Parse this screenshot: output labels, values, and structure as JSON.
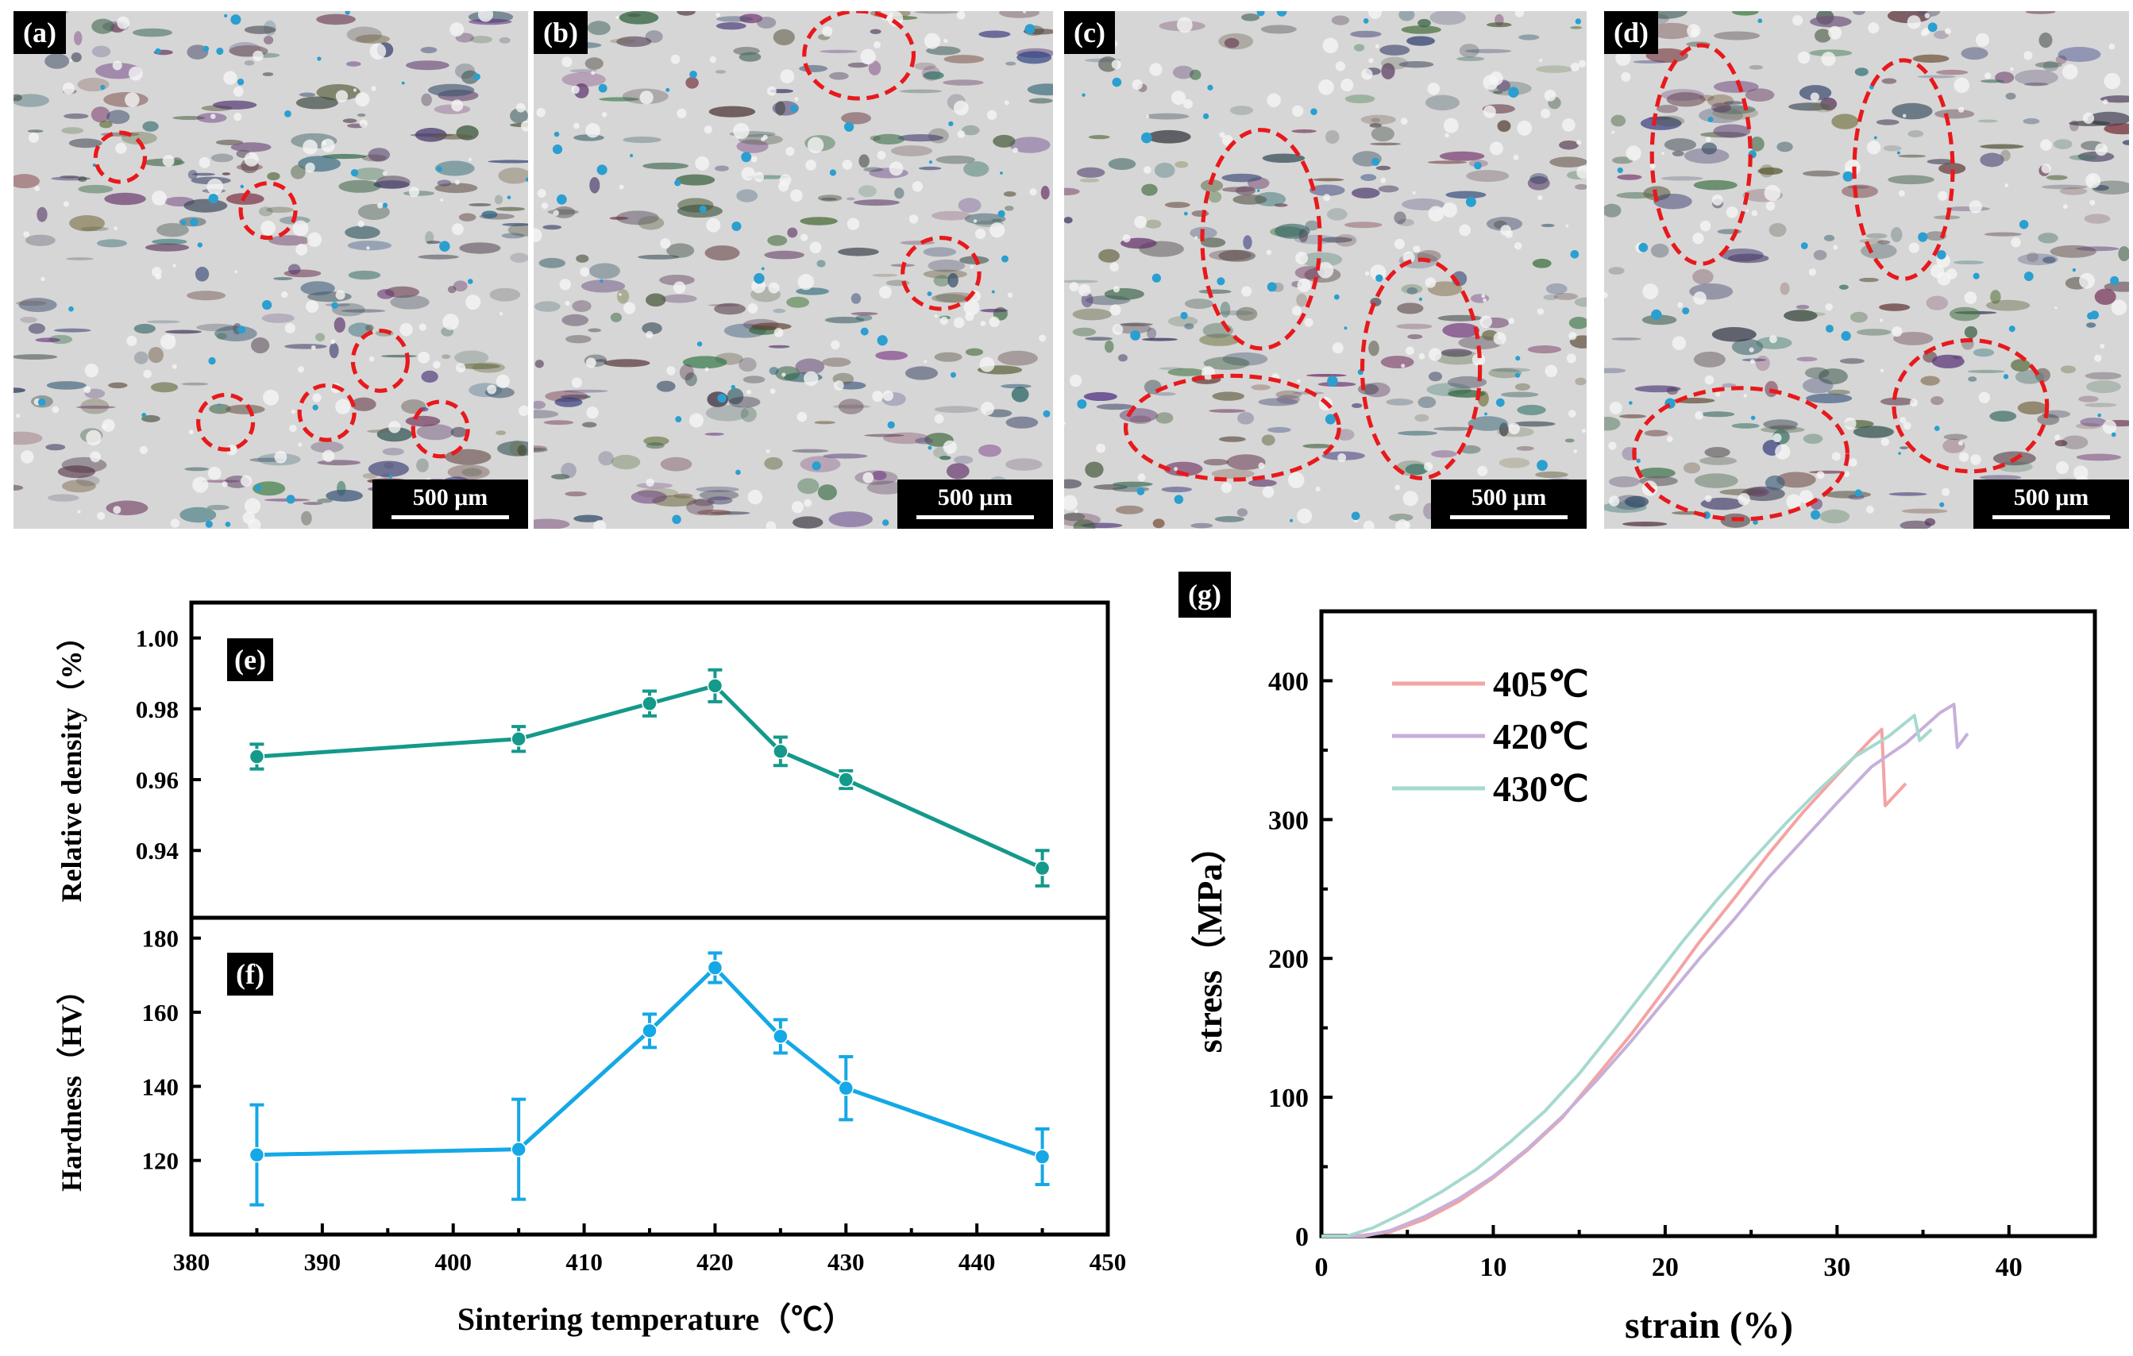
{
  "micrographs": [
    {
      "label": "(a)",
      "scale_bar": "500 μm"
    },
    {
      "label": "(b)",
      "scale_bar": "500 μm"
    },
    {
      "label": "(c)",
      "scale_bar": "500 μm"
    },
    {
      "label": "(d)",
      "scale_bar": "500 μm"
    }
  ],
  "colors": {
    "density": "#14998a",
    "hardness": "#14a8e6",
    "s405": "#f5a3a3",
    "s420": "#c6b0da",
    "s430": "#a6d9cf",
    "ellipse": "#e8191c"
  },
  "chart_data": [
    {
      "type": "line",
      "panel_label": "(e)",
      "title": "",
      "xlabel": "Sintering temperature（℃）",
      "ylabel": "Relative density（%）",
      "xlim": [
        380,
        450
      ],
      "ylim": [
        0.921,
        1.01
      ],
      "yticks": [
        "0.94",
        "0.96",
        "0.98",
        "1.00"
      ],
      "x": [
        385,
        405,
        415,
        420,
        425,
        430,
        445
      ],
      "values": [
        0.9665,
        0.9715,
        0.9815,
        0.9865,
        0.968,
        0.96,
        0.935
      ],
      "errors": [
        0.0035,
        0.0035,
        0.0035,
        0.0045,
        0.004,
        0.0025,
        0.005
      ]
    },
    {
      "type": "line",
      "panel_label": "(f)",
      "title": "",
      "xlabel": "Sintering temperature（℃）",
      "ylabel": "Hardness（HV）",
      "xlim": [
        380,
        450
      ],
      "ylim": [
        100,
        185.5
      ],
      "yticks": [
        "120",
        "140",
        "160",
        "180"
      ],
      "xticks": [
        "380",
        "390",
        "400",
        "410",
        "420",
        "430",
        "440",
        "450"
      ],
      "x": [
        385,
        405,
        415,
        420,
        425,
        430,
        445
      ],
      "values": [
        121.5,
        123,
        155,
        172,
        153.5,
        139.5,
        121
      ],
      "errors": [
        13.5,
        13.5,
        4.5,
        4,
        4.5,
        8.5,
        7.5
      ]
    },
    {
      "type": "line",
      "panel_label": "(g)",
      "title": "",
      "xlabel": "strain (%)",
      "ylabel": "stress（MPa）",
      "xlim": [
        0,
        45
      ],
      "ylim": [
        0,
        450
      ],
      "xticks": [
        "0",
        "10",
        "20",
        "30",
        "40"
      ],
      "yticks": [
        "0",
        "100",
        "200",
        "300",
        "400"
      ],
      "legend_position": "top-left",
      "series": [
        {
          "name": "405℃",
          "x": [
            0,
            2,
            4,
            6,
            8,
            10,
            12,
            14,
            16,
            18,
            20,
            22,
            24,
            26,
            28,
            30,
            32,
            32.6,
            32.8,
            34
          ],
          "values": [
            0,
            0,
            3,
            12,
            25,
            42,
            62,
            85,
            115,
            145,
            178,
            212,
            243,
            275,
            305,
            332,
            358,
            365,
            310,
            326
          ]
        },
        {
          "name": "420℃",
          "x": [
            0,
            2.5,
            4,
            6,
            8,
            10,
            12,
            14,
            16,
            18,
            20,
            22,
            24,
            26,
            28,
            30,
            32,
            34,
            36,
            36.8,
            37,
            37.6
          ],
          "values": [
            0,
            0,
            4,
            14,
            27,
            43,
            63,
            86,
            112,
            140,
            170,
            200,
            228,
            258,
            285,
            312,
            338,
            355,
            377,
            383,
            352,
            362
          ]
        },
        {
          "name": "430℃",
          "x": [
            0,
            1.5,
            3,
            5,
            7,
            9,
            11,
            13,
            15,
            17,
            19,
            21,
            23,
            25,
            27,
            29,
            31,
            33,
            34.5,
            34.8,
            35.5
          ],
          "values": [
            0,
            0,
            6,
            18,
            32,
            48,
            68,
            90,
            117,
            148,
            180,
            212,
            242,
            270,
            297,
            322,
            345,
            360,
            375,
            357,
            365
          ]
        }
      ]
    }
  ]
}
